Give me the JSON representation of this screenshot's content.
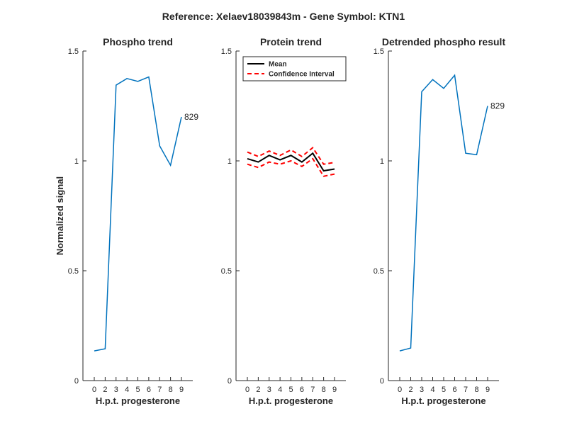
{
  "suptitle": "Reference:  Xelaev18039843m - Gene Symbol:  KTN1",
  "colors": {
    "phospho": "#0072BD",
    "mean": "#000000",
    "ci": "#FF0000",
    "axis": "#262626"
  },
  "chart_data": [
    {
      "type": "line",
      "title": "Phospho trend",
      "xlabel": "H.p.t. progesterone",
      "ylabel": "Normalized signal",
      "x": [
        "0",
        "2",
        "3",
        "4",
        "5",
        "6",
        "7",
        "8",
        "9"
      ],
      "ylim": [
        0,
        1.5
      ],
      "yticks": [
        "0",
        "0.5",
        "1",
        "1.5"
      ],
      "series": [
        {
          "values": [
            0.135,
            0.145,
            1.345,
            1.375,
            1.362,
            1.382,
            1.068,
            0.98,
            1.2
          ]
        }
      ],
      "annotation": {
        "text": "829",
        "index": 8
      }
    },
    {
      "type": "line",
      "title": "Protein trend",
      "xlabel": "H.p.t. progesterone",
      "ylabel": "",
      "x": [
        "0",
        "2",
        "3",
        "4",
        "5",
        "6",
        "7",
        "8",
        "9"
      ],
      "ylim": [
        0,
        1.5
      ],
      "yticks": [
        "0",
        "0.5",
        "1",
        "1.5"
      ],
      "legend": {
        "placement": "top-left",
        "entries": [
          "Mean",
          "Confidence Interval"
        ]
      },
      "series": [
        {
          "name": "Mean",
          "style": "solid",
          "values": [
            1.01,
            0.995,
            1.025,
            1.005,
            1.025,
            0.995,
            1.035,
            0.955,
            0.963
          ]
        },
        {
          "name": "Confidence Interval",
          "style": "dashed",
          "values": [
            1.04,
            1.02,
            1.045,
            1.025,
            1.05,
            1.02,
            1.06,
            0.985,
            0.993
          ]
        },
        {
          "name": "Confidence Interval",
          "style": "dashed",
          "values": [
            0.985,
            0.97,
            0.995,
            0.985,
            1.0,
            0.975,
            1.01,
            0.93,
            0.94
          ]
        }
      ]
    },
    {
      "type": "line",
      "title": "Detrended phospho result",
      "xlabel": "H.p.t. progesterone",
      "ylabel": "",
      "x": [
        "0",
        "2",
        "3",
        "4",
        "5",
        "6",
        "7",
        "8",
        "9"
      ],
      "ylim": [
        0,
        1.5
      ],
      "yticks": [
        "0",
        "0.5",
        "1",
        "1.5"
      ],
      "series": [
        {
          "values": [
            0.135,
            0.148,
            1.315,
            1.37,
            1.33,
            1.39,
            1.035,
            1.028,
            1.25
          ]
        }
      ],
      "annotation": {
        "text": "829",
        "index": 8
      }
    }
  ]
}
